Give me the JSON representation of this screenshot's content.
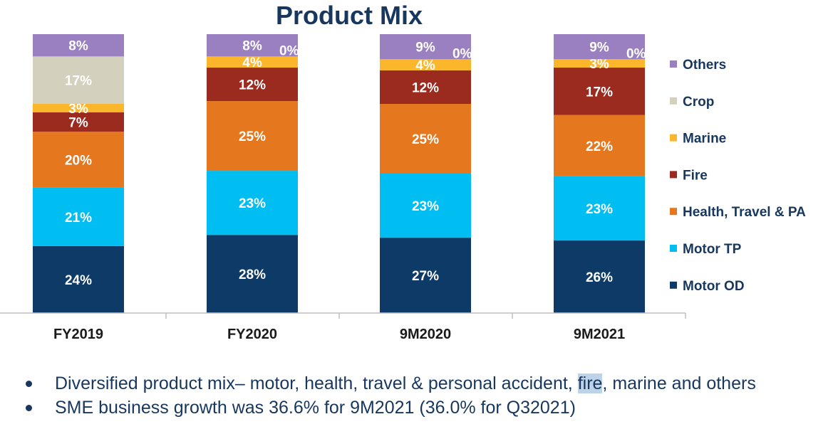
{
  "chart_data": {
    "type": "stacked-bar",
    "title": "Product Mix",
    "categories": [
      "FY2019",
      "FY2020",
      "9M2020",
      "9M2021"
    ],
    "ylim": [
      0,
      100
    ],
    "legend_position": "right",
    "series": [
      {
        "name": "Motor OD",
        "color": "#0e3a68",
        "values": [
          24,
          28,
          27,
          26
        ]
      },
      {
        "name": "Motor TP",
        "color": "#00bdf2",
        "values": [
          21,
          23,
          23,
          23
        ]
      },
      {
        "name": "Health, Travel & PA",
        "color": "#e5781e",
        "values": [
          20,
          25,
          25,
          22
        ]
      },
      {
        "name": "Fire",
        "color": "#9b2a1f",
        "values": [
          7,
          12,
          12,
          17
        ]
      },
      {
        "name": "Marine",
        "color": "#fbb62c",
        "values": [
          3,
          4,
          4,
          3
        ]
      },
      {
        "name": "Crop",
        "color": "#d3d0bd",
        "values": [
          17,
          0,
          0,
          0
        ]
      },
      {
        "name": "Others",
        "color": "#9a80c0",
        "values": [
          8,
          8,
          9,
          9
        ]
      }
    ],
    "annotations": [
      {
        "category": "FY2020",
        "series": "Crop",
        "text": "0%"
      },
      {
        "category": "9M2020",
        "series": "Crop",
        "text": "0%"
      },
      {
        "category": "9M2021",
        "series": "Crop",
        "text": "0%"
      }
    ]
  },
  "bullets": [
    {
      "before": "Diversified product mix– motor, health, travel & personal accident, ",
      "highlight": "fire",
      "after": ", marine and others"
    },
    {
      "before": "SME business growth was 36.6% for 9M2021 (36.0% for Q32021)",
      "highlight": "",
      "after": ""
    }
  ]
}
